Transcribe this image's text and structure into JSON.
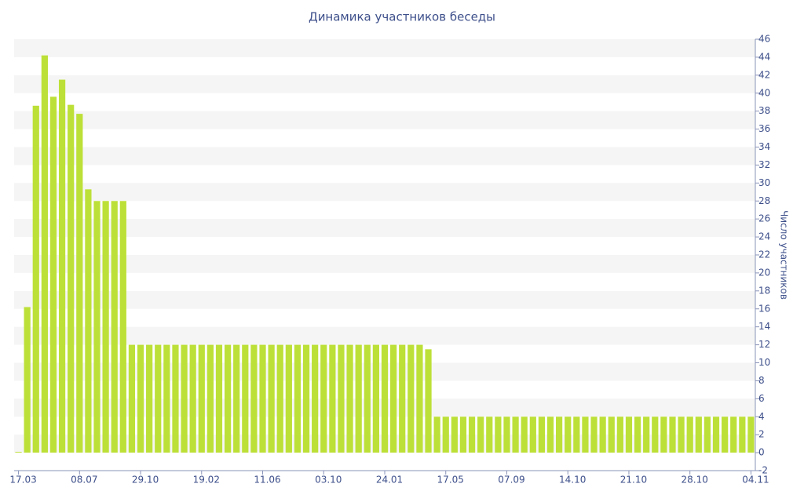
{
  "chart_data": {
    "type": "bar",
    "title": "Динамика участников беседы",
    "y_label": "Число участников",
    "categories": [
      "17.03",
      null,
      null,
      null,
      null,
      null,
      null,
      "08.07",
      null,
      null,
      null,
      null,
      null,
      null,
      "29.10",
      null,
      null,
      null,
      null,
      null,
      null,
      "19.02",
      null,
      null,
      null,
      null,
      null,
      null,
      "11.06",
      null,
      null,
      null,
      null,
      null,
      null,
      "03.10",
      null,
      null,
      null,
      null,
      null,
      null,
      "24.01",
      null,
      null,
      null,
      null,
      null,
      null,
      "17.05",
      null,
      null,
      null,
      null,
      null,
      null,
      "07.09",
      null,
      null,
      null,
      null,
      null,
      null,
      "14.10",
      null,
      null,
      null,
      null,
      null,
      null,
      "21.10",
      null,
      null,
      null,
      null,
      null,
      null,
      "28.10",
      null,
      null,
      null,
      null,
      null,
      null,
      "04.11"
    ],
    "values": [
      0,
      16.2,
      38.6,
      44.2,
      39.6,
      41.5,
      38.7,
      37.7,
      29.3,
      28,
      28,
      28,
      28,
      12,
      12,
      12,
      12,
      12,
      12,
      12,
      12,
      12,
      12,
      12,
      12,
      12,
      12,
      12,
      12,
      12,
      12,
      12,
      12,
      12,
      12,
      12,
      12,
      12,
      12,
      12,
      12,
      12,
      12,
      12,
      12,
      12,
      12,
      11.5,
      4,
      4,
      4,
      4,
      4,
      4,
      4,
      4,
      4,
      4,
      4,
      4,
      4,
      4,
      4,
      4,
      4,
      4,
      4,
      4,
      4,
      4,
      4,
      4,
      4,
      4,
      4,
      4,
      4,
      4,
      4,
      4,
      4,
      4,
      4,
      4,
      4
    ],
    "color": "#bde038",
    "ylim": [
      -2,
      46
    ],
    "yticks": [
      -2,
      0,
      2,
      4,
      6,
      8,
      10,
      12,
      14,
      16,
      18,
      20,
      22,
      24,
      26,
      28,
      30,
      32,
      34,
      36,
      38,
      40,
      42,
      44,
      46
    ],
    "grid": true
  }
}
